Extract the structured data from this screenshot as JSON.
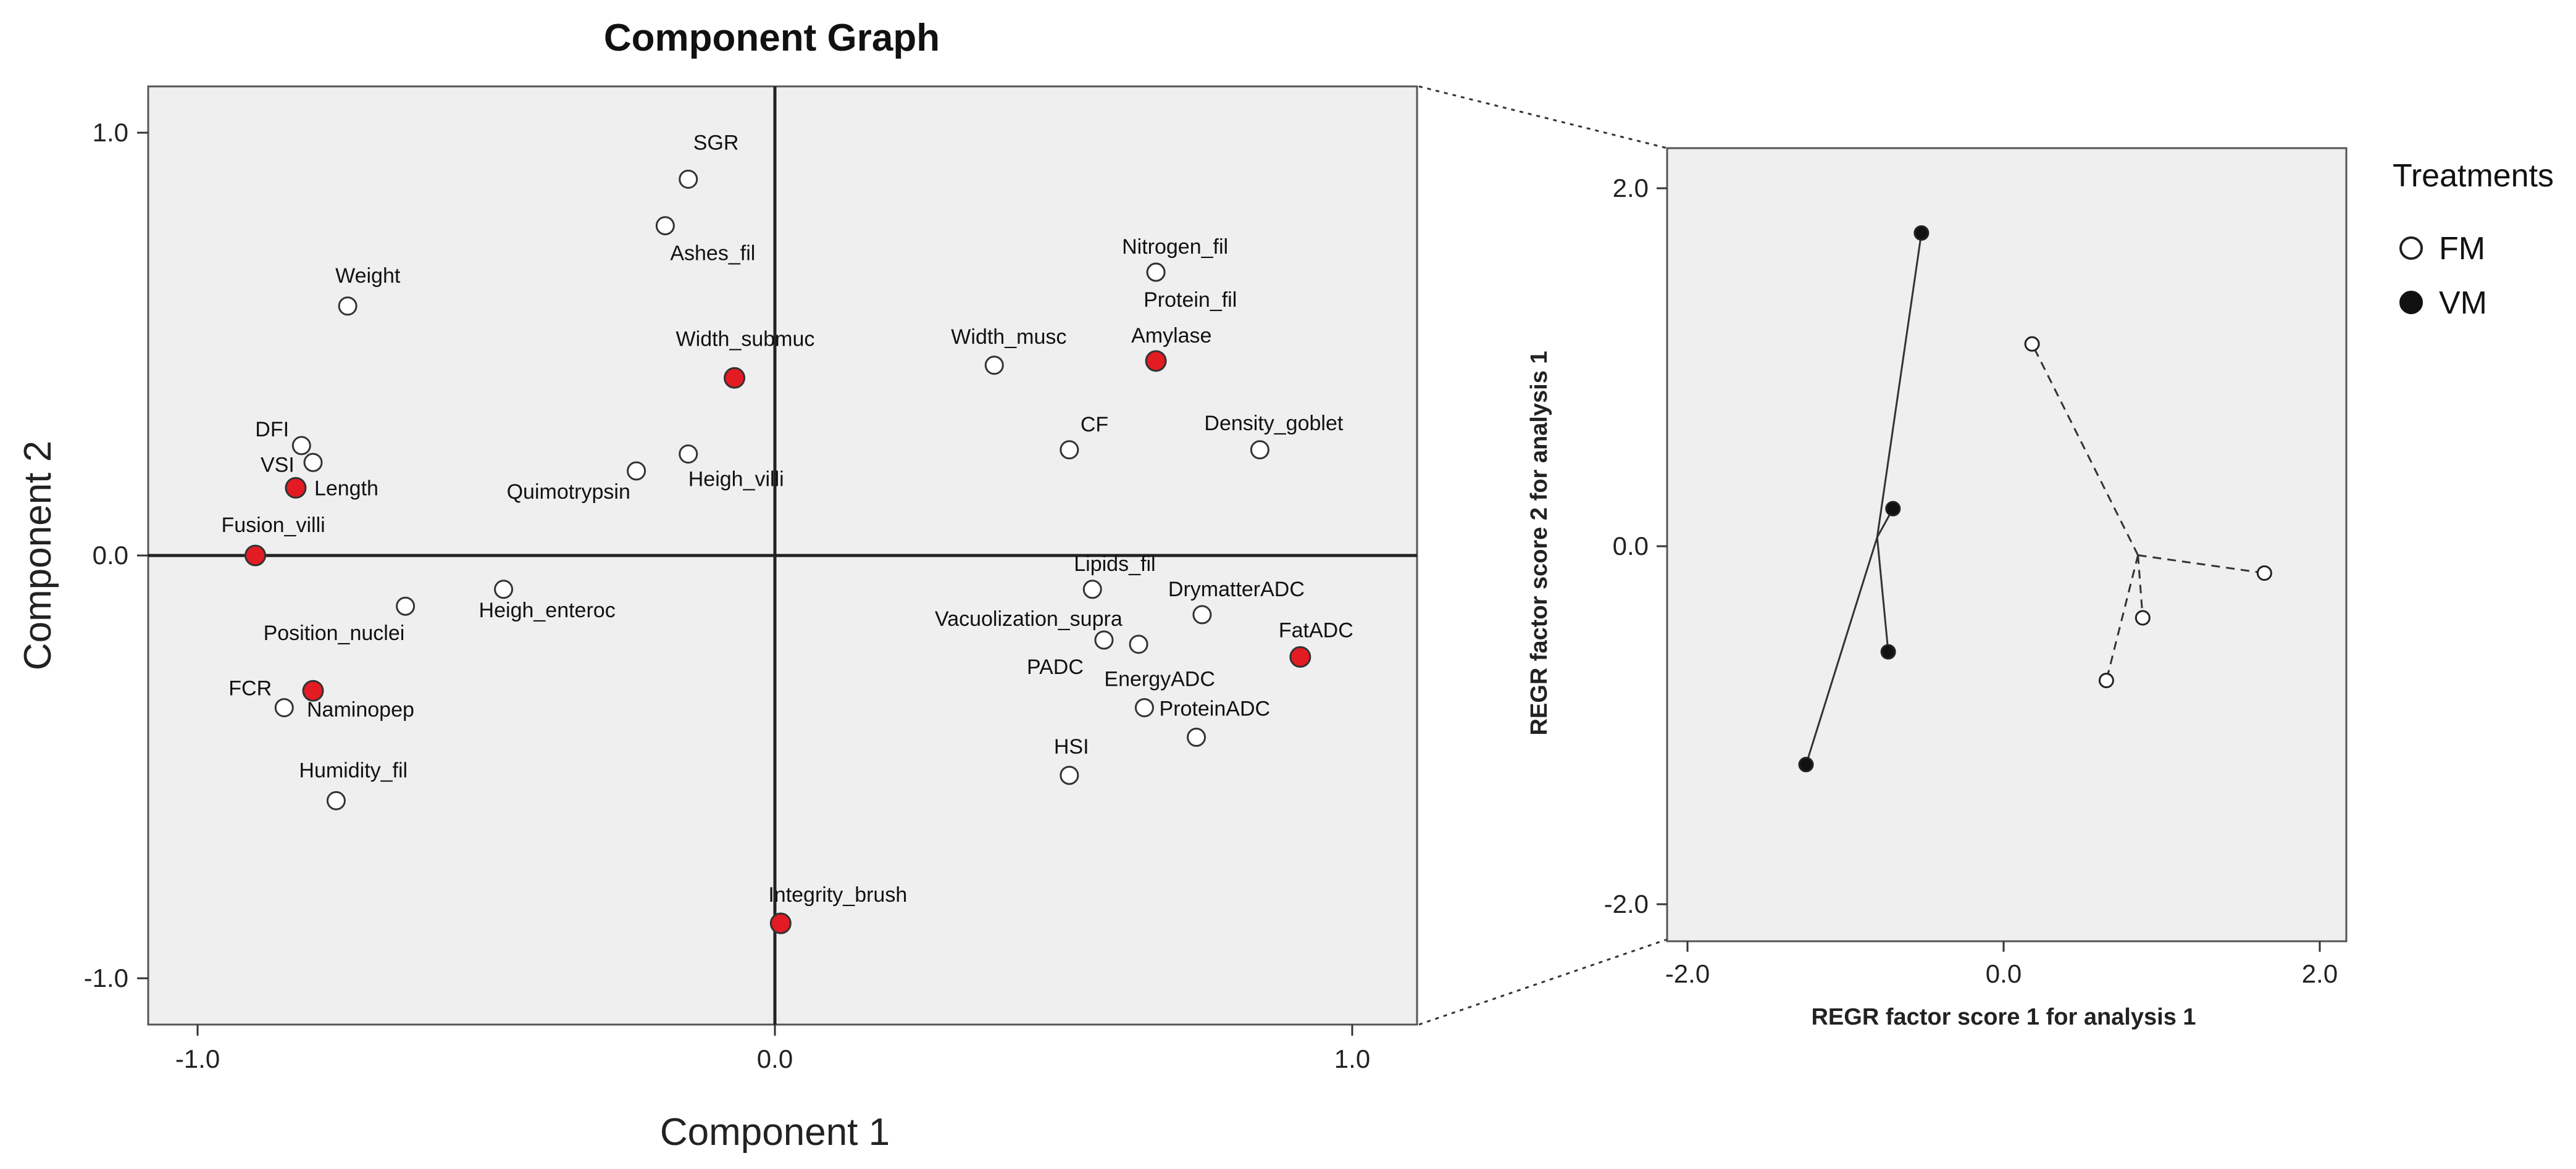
{
  "chart_data": [
    {
      "type": "scatter",
      "title": "Component Graph",
      "xlabel": "Component 1",
      "ylabel": "Component 2",
      "xlim": [
        -1.1,
        1.1
      ],
      "ylim": [
        -1.1,
        1.1
      ],
      "xticks": [
        "-1.0",
        "0.0",
        "1.0"
      ],
      "yticks": [
        "1.0",
        "0.0",
        "-1.0"
      ],
      "points": [
        {
          "label": "SGR",
          "x": -0.15,
          "y": 0.89,
          "highlight": false
        },
        {
          "label": "Ashes_fil",
          "x": -0.19,
          "y": 0.78,
          "highlight": false
        },
        {
          "label": "Weight",
          "x": -0.74,
          "y": 0.59,
          "highlight": false
        },
        {
          "label": "Width_submuc",
          "x": -0.07,
          "y": 0.42,
          "highlight": true
        },
        {
          "label": "Nitrogen_fil",
          "x": 0.66,
          "y": 0.67,
          "highlight": false
        },
        {
          "label": "Protein_fil",
          "x": 0.66,
          "y": 0.67,
          "highlight": false
        },
        {
          "label": "Amylase",
          "x": 0.66,
          "y": 0.46,
          "highlight": true
        },
        {
          "label": "Width_musc",
          "x": 0.38,
          "y": 0.45,
          "highlight": false
        },
        {
          "label": "DFI",
          "x": -0.82,
          "y": 0.26,
          "highlight": false
        },
        {
          "label": "VSI",
          "x": -0.8,
          "y": 0.22,
          "highlight": false
        },
        {
          "label": "Length",
          "x": -0.83,
          "y": 0.16,
          "highlight": true
        },
        {
          "label": "Quimotrypsin",
          "x": -0.24,
          "y": 0.2,
          "highlight": false
        },
        {
          "label": "Heigh_villi",
          "x": -0.15,
          "y": 0.24,
          "highlight": false
        },
        {
          "label": "CF",
          "x": 0.51,
          "y": 0.25,
          "highlight": false
        },
        {
          "label": "Density_goblet",
          "x": 0.84,
          "y": 0.25,
          "highlight": false
        },
        {
          "label": "Fusion_villi",
          "x": -0.9,
          "y": 0.0,
          "highlight": true
        },
        {
          "label": "Lipids_fil",
          "x": 0.55,
          "y": -0.08,
          "highlight": false
        },
        {
          "label": "DrymatterADC",
          "x": 0.74,
          "y": -0.14,
          "highlight": false
        },
        {
          "label": "Vacuolization_supra",
          "x": 0.63,
          "y": -0.21,
          "highlight": false
        },
        {
          "label": "PADC",
          "x": 0.57,
          "y": -0.2,
          "highlight": false
        },
        {
          "label": "FatADC",
          "x": 0.91,
          "y": -0.24,
          "highlight": true
        },
        {
          "label": "EnergyADC",
          "x": 0.64,
          "y": -0.36,
          "highlight": false
        },
        {
          "label": "ProteinADC",
          "x": 0.73,
          "y": -0.43,
          "highlight": false
        },
        {
          "label": "HSI",
          "x": 0.51,
          "y": -0.52,
          "highlight": false
        },
        {
          "label": "Position_nuclei",
          "x": -0.64,
          "y": -0.12,
          "highlight": false
        },
        {
          "label": "Heigh_enteroc",
          "x": -0.47,
          "y": -0.08,
          "highlight": false
        },
        {
          "label": "FCR",
          "x": -0.85,
          "y": -0.36,
          "highlight": false
        },
        {
          "label": "Naminopep",
          "x": -0.8,
          "y": -0.32,
          "highlight": true
        },
        {
          "label": "Humidity_fil",
          "x": -0.76,
          "y": -0.58,
          "highlight": false
        },
        {
          "label": "Integrity_brush",
          "x": 0.01,
          "y": -0.87,
          "highlight": true
        }
      ]
    },
    {
      "type": "scatter",
      "title": "",
      "xlabel": "REGR factor score   1 for analysis 1",
      "ylabel": "REGR factor score   2 for analysis 1",
      "xlim": [
        -2.0,
        2.0
      ],
      "ylim": [
        -2.0,
        2.0
      ],
      "xticks": [
        "-2.0",
        "0.0",
        "2.0"
      ],
      "yticks": [
        "2.0",
        "0.0",
        "-2.0"
      ],
      "legend_title": "Treatments",
      "series": [
        {
          "name": "FM",
          "centroid": {
            "x": 0.85,
            "y": -0.05
          },
          "points": [
            {
              "x": 0.18,
              "y": 1.13
            },
            {
              "x": 1.65,
              "y": -0.15
            },
            {
              "x": 0.88,
              "y": -0.4
            },
            {
              "x": 0.65,
              "y": -0.75
            }
          ]
        },
        {
          "name": "VM",
          "centroid": {
            "x": -0.8,
            "y": 0.05
          },
          "points": [
            {
              "x": -0.52,
              "y": 1.75
            },
            {
              "x": -0.7,
              "y": 0.21
            },
            {
              "x": -0.73,
              "y": -0.59
            },
            {
              "x": -1.25,
              "y": -1.22
            }
          ]
        }
      ]
    }
  ]
}
